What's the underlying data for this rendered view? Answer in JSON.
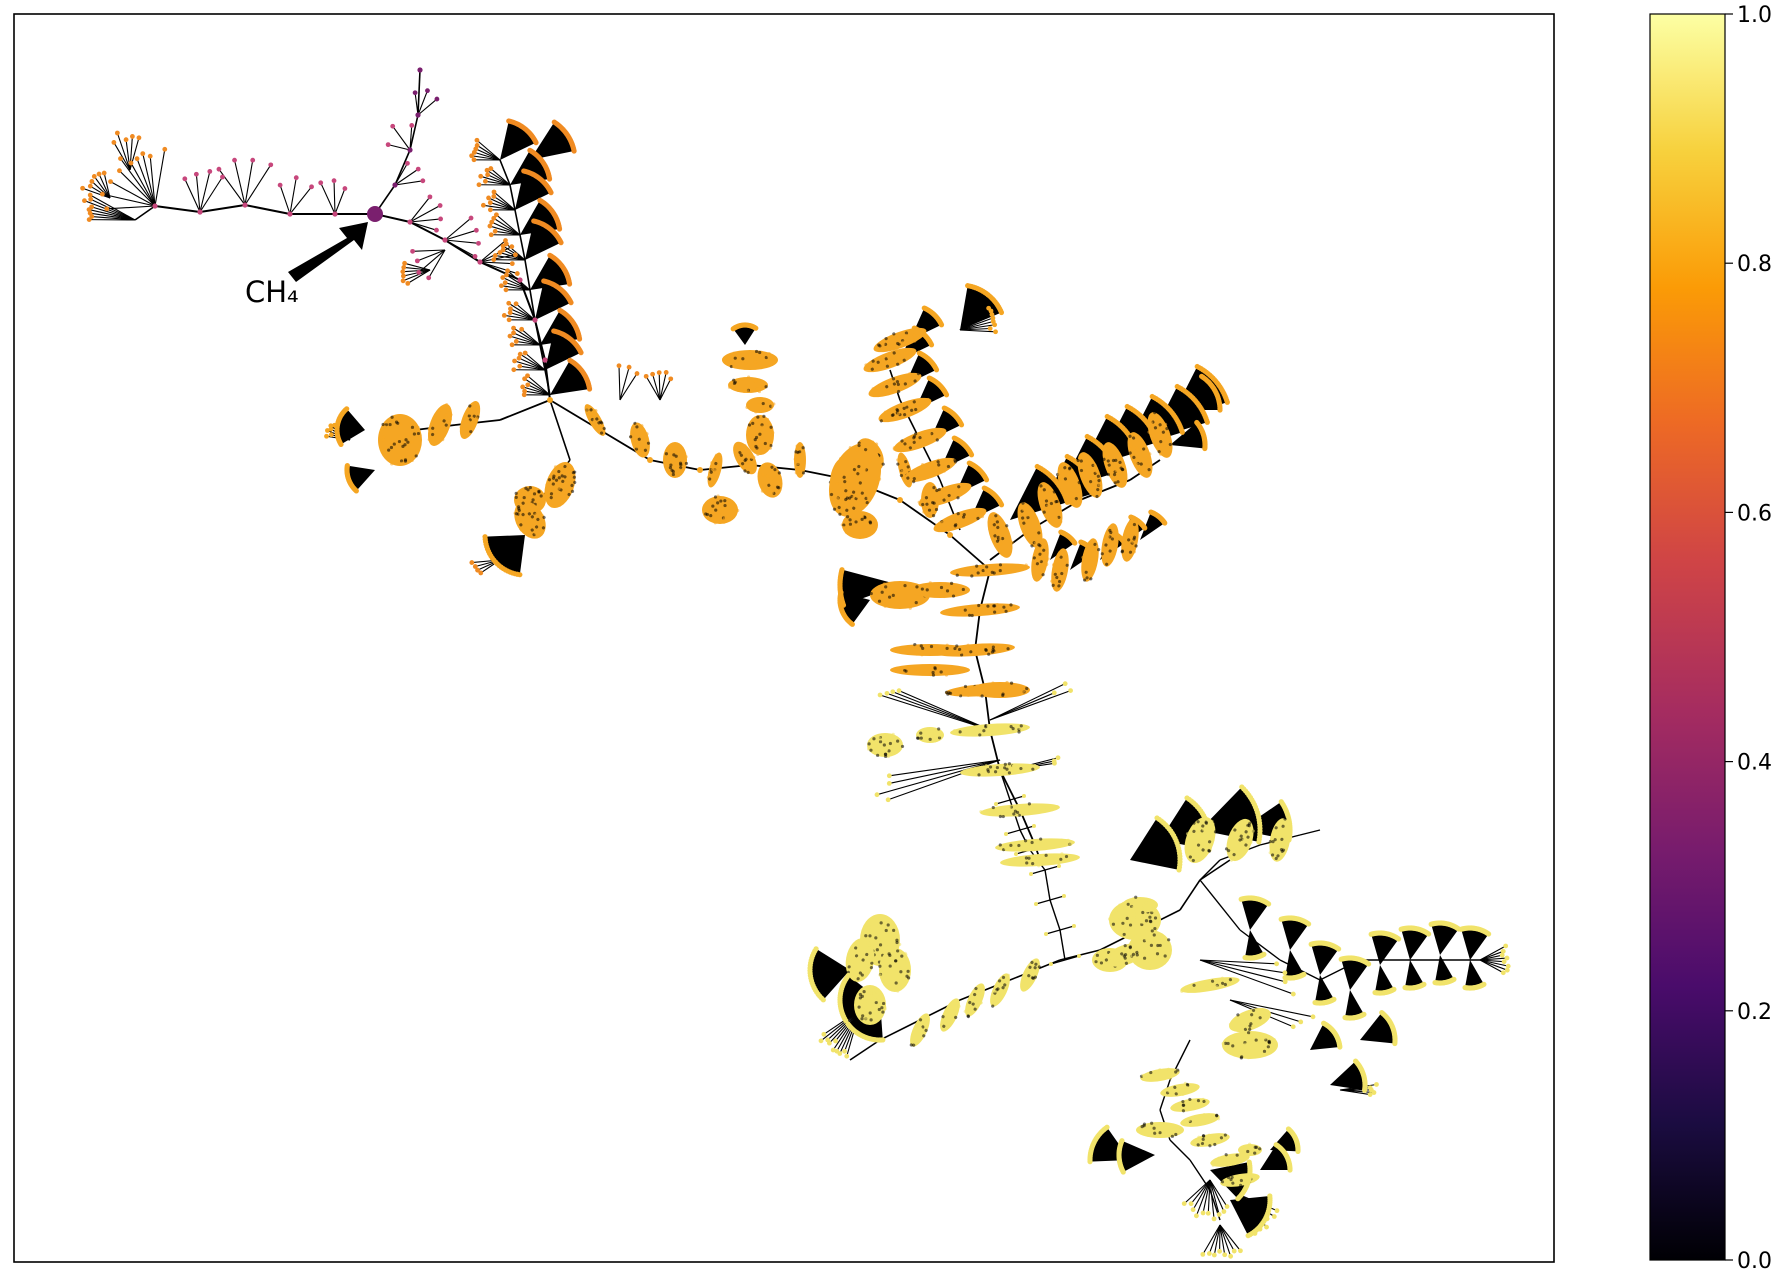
{
  "annotation": {
    "label": "CH₄"
  },
  "colorbar": {
    "colormap": "inferno",
    "range": [
      0.0,
      1.0
    ],
    "tick_labels": [
      "0.0",
      "0.2",
      "0.4",
      "0.6",
      "0.8",
      "1.0"
    ],
    "stops": [
      "#000004",
      "#1b0c41",
      "#4a0c6b",
      "#781c6d",
      "#a52c60",
      "#cf4446",
      "#ed6925",
      "#fb9b06",
      "#f7d13d",
      "#fcffa4"
    ]
  },
  "node_colors": {
    "root": "#7a1f6e",
    "low": "#c7477c",
    "mid": "#f08b22",
    "orange": "#f5a623",
    "yellow": "#f1e36a"
  },
  "axes": {
    "ticks": false,
    "frame": true
  }
}
